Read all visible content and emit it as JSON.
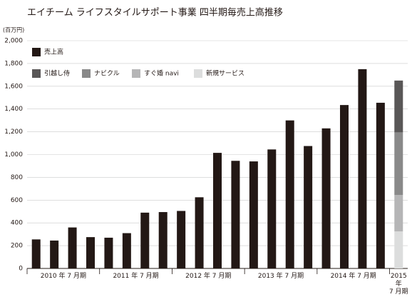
{
  "chart_data": {
    "type": "bar",
    "title": "エイチーム ライフスタイルサポート事業 四半期毎売上高推移",
    "unit_label": "(百万円)",
    "categories": [
      null,
      null,
      null,
      null,
      null,
      null,
      null,
      null,
      null,
      null,
      null,
      null,
      null,
      null,
      null,
      null,
      null,
      null,
      null,
      null,
      null
    ],
    "x_groups": [
      "2010 年 7 月期",
      "2011 年 7 月期",
      "2012 年 7 月期",
      "2013 年 7 月期",
      "2014 年 7 月期",
      "2015 年\n7 月期"
    ],
    "series": [
      {
        "name": "売上高",
        "color": "#231815",
        "values": [
          255,
          245,
          360,
          275,
          270,
          310,
          490,
          495,
          505,
          625,
          1015,
          945,
          940,
          1045,
          1300,
          1075,
          1230,
          1435,
          1750,
          1455,
          null
        ]
      },
      {
        "name": "引越し侍",
        "color": "#595757",
        "values": [
          null,
          null,
          null,
          null,
          null,
          null,
          null,
          null,
          null,
          null,
          null,
          null,
          null,
          null,
          null,
          null,
          null,
          null,
          null,
          null,
          455
        ]
      },
      {
        "name": "ナビクル",
        "color": "#898989",
        "values": [
          null,
          null,
          null,
          null,
          null,
          null,
          null,
          null,
          null,
          null,
          null,
          null,
          null,
          null,
          null,
          null,
          null,
          null,
          null,
          null,
          550
        ]
      },
      {
        "name": "すぐ婚 navi",
        "color": "#b5b5b6",
        "values": [
          null,
          null,
          null,
          null,
          null,
          null,
          null,
          null,
          null,
          null,
          null,
          null,
          null,
          null,
          null,
          null,
          null,
          null,
          null,
          null,
          320
        ]
      },
      {
        "name": "新規サービス",
        "color": "#dcdddd",
        "values": [
          null,
          null,
          null,
          null,
          null,
          null,
          null,
          null,
          null,
          null,
          null,
          null,
          null,
          null,
          null,
          null,
          null,
          null,
          null,
          null,
          325
        ]
      }
    ],
    "stacked": true,
    "ylim": [
      0,
      2000
    ],
    "yticks": [
      0,
      200,
      400,
      600,
      800,
      {
        "value": 1000,
        "label": "1,000"
      },
      {
        "value": 1200,
        "label": "1,200"
      },
      {
        "value": 1400,
        "label": "1,400"
      },
      {
        "value": 1600,
        "label": "1,600"
      },
      {
        "value": 1800,
        "label": "1,800"
      },
      {
        "value": 2000,
        "label": "2,000"
      }
    ],
    "grid": true
  }
}
